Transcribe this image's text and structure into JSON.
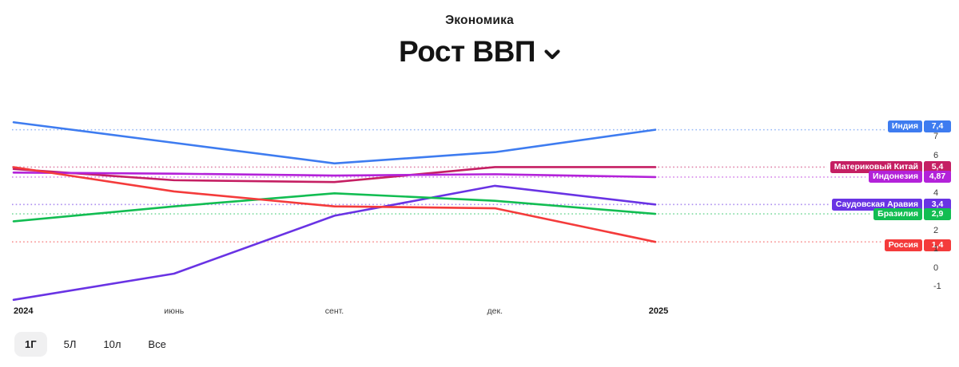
{
  "header": {
    "category": "Экономика",
    "title": "Рост ВВП"
  },
  "chart_data": {
    "type": "line",
    "title": "Рост ВВП",
    "xlabel": "",
    "ylabel": "",
    "grid": "off",
    "legend_position": "right-edge-value-labels",
    "x_categories": [
      "2024",
      "июнь",
      "сент.",
      "дек.",
      "2025"
    ],
    "y_ticks_visible": [
      7,
      6,
      4,
      2,
      1,
      0,
      -1
    ],
    "y_axis_range": [
      -1.9,
      8.2
    ],
    "series": [
      {
        "name": "Индия",
        "color": "#3E7CF0",
        "values": [
          7.8,
          6.7,
          5.6,
          6.2,
          7.4
        ],
        "end_label": "7,4"
      },
      {
        "name": "Материковый Китай",
        "color": "#C51F63",
        "values": [
          5.3,
          4.7,
          4.6,
          5.4,
          5.4
        ],
        "end_label": "5,4"
      },
      {
        "name": "Индонезия",
        "color": "#B322D9",
        "values": [
          5.11,
          5.05,
          4.95,
          5.02,
          4.87
        ],
        "end_label": "4,87"
      },
      {
        "name": "Саудовская Аравия",
        "color": "#6933E4",
        "values": [
          -1.7,
          -0.3,
          2.8,
          4.4,
          3.4
        ],
        "end_label": "3,4"
      },
      {
        "name": "Бразилия",
        "color": "#12BD52",
        "values": [
          2.5,
          3.3,
          4.0,
          3.6,
          2.9
        ],
        "end_label": "2,9"
      },
      {
        "name": "Россия",
        "color": "#F43B3B",
        "values": [
          5.4,
          4.1,
          3.3,
          3.2,
          1.4
        ],
        "end_label": "1,4"
      }
    ]
  },
  "time_range": {
    "options": [
      {
        "label": "1Г",
        "selected": true
      },
      {
        "label": "5Л",
        "selected": false
      },
      {
        "label": "10л",
        "selected": false
      },
      {
        "label": "Все",
        "selected": false
      }
    ]
  }
}
